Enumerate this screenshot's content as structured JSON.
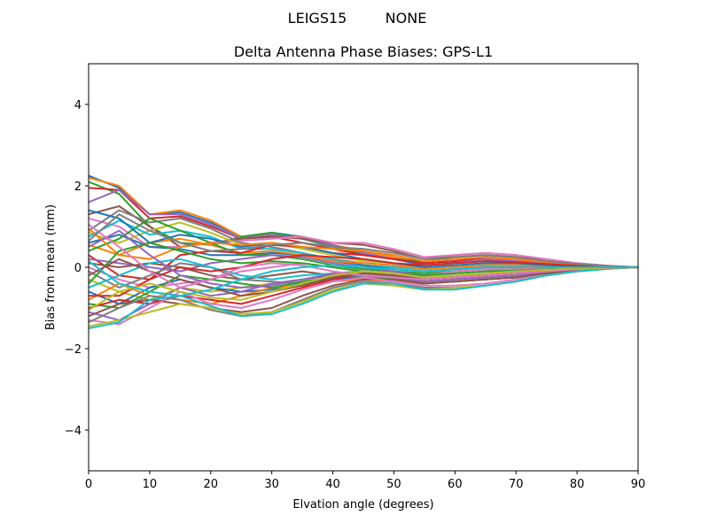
{
  "figure": {
    "suptitle_left": "LEIGS15",
    "suptitle_right": "NONE"
  },
  "chart_data": {
    "type": "line",
    "title": "Delta Antenna Phase Biases: GPS-L1",
    "xlabel": "Elvation angle (degrees)",
    "ylabel": "Bias from mean (mm)",
    "xlim": [
      0,
      90
    ],
    "ylim": [
      -5,
      5
    ],
    "xticks": [
      0,
      10,
      20,
      30,
      40,
      50,
      60,
      70,
      80,
      90
    ],
    "yticks": [
      -4,
      -2,
      0,
      2,
      4
    ],
    "ytick_labels": [
      "−4",
      "−2",
      "0",
      "2",
      "4"
    ],
    "grid": false,
    "legend": "none",
    "x": [
      0,
      5,
      10,
      15,
      20,
      25,
      30,
      35,
      40,
      45,
      50,
      55,
      60,
      65,
      70,
      75,
      80,
      85,
      90
    ],
    "colors": [
      "#1f77b4",
      "#ff7f0e",
      "#2ca02c",
      "#d62728",
      "#9467bd",
      "#8c564b",
      "#e377c2",
      "#7f7f7f",
      "#bcbd22",
      "#17becf"
    ],
    "series": [
      {
        "values": [
          2.25,
          1.95,
          1.3,
          1.35,
          1.1,
          0.75,
          0.85,
          0.75,
          0.5,
          0.35,
          0.2,
          0.05,
          0.1,
          0.15,
          0.15,
          0.1,
          0.05,
          0.02,
          0
        ]
      },
      {
        "values": [
          2.2,
          2.0,
          1.3,
          1.4,
          1.15,
          0.75,
          0.8,
          0.75,
          0.55,
          0.4,
          0.25,
          0.1,
          0.15,
          0.2,
          0.15,
          0.1,
          0.05,
          0.02,
          0
        ]
      },
      {
        "values": [
          2.1,
          1.8,
          1.0,
          0.6,
          0.55,
          0.75,
          0.85,
          0.7,
          0.5,
          0.3,
          0.2,
          0.15,
          0.25,
          0.3,
          0.25,
          0.15,
          0.08,
          0.03,
          0
        ]
      },
      {
        "values": [
          1.95,
          1.9,
          1.2,
          1.25,
          1.0,
          0.7,
          0.75,
          0.6,
          0.45,
          0.3,
          0.2,
          0.1,
          0.15,
          0.2,
          0.15,
          0.1,
          0.05,
          0.02,
          0
        ]
      },
      {
        "values": [
          1.6,
          1.9,
          1.3,
          1.3,
          1.05,
          0.7,
          0.8,
          0.7,
          0.55,
          0.35,
          0.2,
          0.1,
          0.15,
          0.2,
          0.15,
          0.1,
          0.05,
          0.02,
          0
        ]
      },
      {
        "values": [
          1.3,
          1.5,
          1.0,
          0.5,
          0.6,
          0.7,
          0.75,
          0.7,
          0.6,
          0.55,
          0.4,
          0.2,
          0.3,
          0.35,
          0.3,
          0.15,
          0.1,
          0.04,
          0
        ]
      },
      {
        "values": [
          1.2,
          1.0,
          0.5,
          0.5,
          0.6,
          0.65,
          0.7,
          0.75,
          0.6,
          0.6,
          0.45,
          0.25,
          0.3,
          0.35,
          0.3,
          0.2,
          0.1,
          0.04,
          0
        ]
      },
      {
        "values": [
          0.9,
          1.4,
          1.1,
          1.2,
          0.95,
          0.6,
          0.5,
          0.35,
          0.2,
          0.1,
          0.05,
          -0.05,
          0.0,
          0.05,
          0.05,
          0.05,
          0.03,
          0.01,
          0
        ]
      },
      {
        "values": [
          0.85,
          0.6,
          0.9,
          1.1,
          0.85,
          0.55,
          0.6,
          0.45,
          0.3,
          0.15,
          0.1,
          0.0,
          0.05,
          0.1,
          0.1,
          0.05,
          0.03,
          0.01,
          0
        ]
      },
      {
        "values": [
          0.75,
          1.15,
          0.8,
          0.9,
          0.75,
          0.45,
          0.45,
          0.35,
          0.2,
          0.05,
          0.0,
          -0.05,
          0.0,
          0.05,
          0.05,
          0.03,
          0.02,
          0.01,
          0
        ]
      },
      {
        "values": [
          0.6,
          0.8,
          0.5,
          0.45,
          0.3,
          0.3,
          0.35,
          0.3,
          0.15,
          0.05,
          -0.05,
          -0.1,
          -0.05,
          0.0,
          0.0,
          0.0,
          0.0,
          0.0,
          0
        ]
      },
      {
        "values": [
          0.55,
          0.3,
          0.6,
          0.7,
          0.55,
          0.35,
          0.4,
          0.3,
          0.15,
          0.1,
          0.05,
          -0.05,
          0.0,
          0.05,
          0.05,
          0.03,
          0.02,
          0.01,
          0
        ]
      },
      {
        "values": [
          0.4,
          0.7,
          1.2,
          0.9,
          0.6,
          0.3,
          0.3,
          0.2,
          0.05,
          -0.05,
          -0.1,
          -0.15,
          -0.1,
          -0.05,
          -0.05,
          -0.03,
          -0.02,
          -0.01,
          0
        ]
      },
      {
        "values": [
          0.3,
          -0.2,
          -0.3,
          0.3,
          0.4,
          0.35,
          0.55,
          0.5,
          0.35,
          0.3,
          0.2,
          0.1,
          0.15,
          0.25,
          0.2,
          0.15,
          0.08,
          0.03,
          0
        ]
      },
      {
        "values": [
          0.2,
          0.1,
          0.0,
          -0.1,
          0.1,
          0.2,
          0.3,
          0.25,
          0.1,
          0.0,
          -0.1,
          -0.2,
          -0.1,
          -0.05,
          -0.05,
          -0.03,
          -0.02,
          -0.01,
          0
        ]
      },
      {
        "values": [
          0.1,
          0.0,
          0.1,
          0.0,
          -0.2,
          -0.3,
          -0.2,
          -0.1,
          -0.2,
          -0.3,
          -0.35,
          -0.4,
          -0.35,
          -0.3,
          -0.25,
          -0.15,
          -0.08,
          -0.03,
          0
        ]
      },
      {
        "values": [
          0.0,
          -0.3,
          -0.5,
          -0.4,
          -0.3,
          -0.1,
          0.0,
          0.1,
          0.0,
          -0.1,
          -0.15,
          -0.2,
          -0.1,
          -0.05,
          -0.05,
          -0.03,
          -0.02,
          -0.01,
          0
        ]
      },
      {
        "values": [
          -0.1,
          -0.5,
          -0.2,
          0.1,
          0.0,
          -0.3,
          -0.35,
          -0.4,
          -0.3,
          -0.25,
          -0.3,
          -0.35,
          -0.3,
          -0.25,
          -0.2,
          -0.1,
          -0.05,
          -0.02,
          0
        ]
      },
      {
        "values": [
          -0.3,
          -0.6,
          -0.8,
          -0.5,
          -0.6,
          -0.5,
          -0.4,
          -0.3,
          -0.2,
          -0.15,
          -0.2,
          -0.3,
          -0.25,
          -0.2,
          -0.15,
          -0.1,
          -0.05,
          -0.02,
          0
        ]
      },
      {
        "values": [
          -0.5,
          -0.2,
          0.1,
          0.2,
          0.0,
          -0.2,
          -0.3,
          -0.2,
          -0.15,
          -0.1,
          -0.2,
          -0.3,
          -0.25,
          -0.2,
          -0.15,
          -0.1,
          -0.05,
          -0.02,
          0
        ]
      },
      {
        "values": [
          -0.6,
          -0.9,
          -0.5,
          -0.3,
          -0.5,
          -0.6,
          -0.55,
          -0.4,
          -0.3,
          -0.2,
          -0.25,
          -0.3,
          -0.25,
          -0.2,
          -0.15,
          -0.1,
          -0.05,
          -0.02,
          0
        ]
      },
      {
        "values": [
          -0.8,
          -0.4,
          -0.7,
          -0.8,
          -0.9,
          -0.7,
          -0.5,
          -0.45,
          -0.35,
          -0.3,
          -0.35,
          -0.4,
          -0.35,
          -0.3,
          -0.25,
          -0.15,
          -0.08,
          -0.03,
          0
        ]
      },
      {
        "values": [
          -0.9,
          -1.0,
          -0.6,
          -0.2,
          -0.3,
          -0.4,
          -0.5,
          -0.35,
          -0.25,
          -0.2,
          -0.3,
          -0.4,
          -0.35,
          -0.3,
          -0.25,
          -0.15,
          -0.08,
          -0.03,
          0
        ]
      },
      {
        "values": [
          -1.0,
          -0.8,
          -0.9,
          -0.7,
          -0.8,
          -0.9,
          -0.7,
          -0.5,
          -0.3,
          -0.15,
          -0.2,
          -0.3,
          -0.25,
          -0.2,
          -0.15,
          -0.1,
          -0.05,
          -0.02,
          0
        ]
      },
      {
        "values": [
          -1.1,
          -1.3,
          -0.9,
          -0.5,
          -0.7,
          -0.6,
          -0.4,
          -0.3,
          -0.2,
          -0.2,
          -0.25,
          -0.35,
          -0.3,
          -0.25,
          -0.2,
          -0.12,
          -0.06,
          -0.02,
          0
        ]
      },
      {
        "values": [
          -1.2,
          -0.9,
          -0.8,
          -0.9,
          -1.0,
          -1.1,
          -1.0,
          -0.7,
          -0.45,
          -0.3,
          -0.3,
          -0.4,
          -0.35,
          -0.3,
          -0.25,
          -0.15,
          -0.08,
          -0.03,
          0
        ]
      },
      {
        "values": [
          -1.3,
          -1.4,
          -1.0,
          -0.6,
          -0.9,
          -1.0,
          -0.8,
          -0.55,
          -0.35,
          -0.25,
          -0.35,
          -0.45,
          -0.45,
          -0.4,
          -0.3,
          -0.2,
          -0.1,
          -0.04,
          0
        ]
      },
      {
        "values": [
          -1.35,
          -1.0,
          -0.7,
          -0.8,
          -1.05,
          -1.2,
          -1.1,
          -0.8,
          -0.5,
          -0.35,
          -0.4,
          -0.5,
          -0.5,
          -0.45,
          -0.35,
          -0.2,
          -0.1,
          -0.04,
          0
        ]
      },
      {
        "values": [
          -1.45,
          -1.3,
          -1.1,
          -0.9,
          -1.0,
          -1.15,
          -1.1,
          -0.85,
          -0.55,
          -0.4,
          -0.45,
          -0.55,
          -0.5,
          -0.45,
          -0.35,
          -0.2,
          -0.1,
          -0.04,
          0
        ]
      },
      {
        "values": [
          -1.5,
          -1.35,
          -0.8,
          -0.7,
          -0.95,
          -1.2,
          -1.15,
          -0.9,
          -0.6,
          -0.4,
          -0.4,
          -0.55,
          -0.55,
          -0.45,
          -0.35,
          -0.2,
          -0.1,
          -0.04,
          0
        ]
      },
      {
        "values": [
          1.4,
          1.2,
          0.6,
          0.8,
          0.7,
          0.5,
          0.6,
          0.5,
          0.35,
          0.2,
          0.1,
          0.0,
          0.05,
          0.1,
          0.1,
          0.05,
          0.03,
          0.01,
          0
        ]
      },
      {
        "values": [
          0.95,
          0.3,
          0.2,
          0.5,
          0.6,
          0.55,
          0.6,
          0.5,
          0.45,
          0.4,
          0.3,
          0.15,
          0.2,
          0.25,
          0.2,
          0.12,
          0.06,
          0.02,
          0
        ]
      },
      {
        "values": [
          -0.4,
          0.4,
          0.6,
          0.4,
          0.2,
          0.1,
          0.15,
          0.1,
          0.0,
          -0.1,
          -0.15,
          -0.2,
          -0.15,
          -0.1,
          -0.08,
          -0.05,
          -0.03,
          -0.01,
          0
        ]
      },
      {
        "values": [
          -0.7,
          -0.7,
          -0.3,
          0.0,
          -0.1,
          0.0,
          0.2,
          0.3,
          0.25,
          0.2,
          0.1,
          0.05,
          0.1,
          0.15,
          0.12,
          0.08,
          0.04,
          0.02,
          0
        ]
      },
      {
        "values": [
          0.5,
          0.9,
          0.3,
          -0.2,
          -0.4,
          -0.5,
          -0.45,
          -0.3,
          -0.15,
          -0.1,
          -0.15,
          -0.25,
          -0.2,
          -0.15,
          -0.1,
          -0.06,
          -0.03,
          -0.01,
          0
        ]
      },
      {
        "values": [
          -0.2,
          0.2,
          -0.1,
          -0.3,
          -0.5,
          -0.7,
          -0.6,
          -0.45,
          -0.25,
          -0.15,
          -0.2,
          -0.3,
          -0.25,
          -0.2,
          -0.15,
          -0.1,
          -0.05,
          -0.02,
          0
        ]
      },
      {
        "values": [
          1.05,
          0.5,
          -0.1,
          -0.5,
          -0.3,
          0.0,
          0.1,
          0.05,
          -0.1,
          -0.2,
          -0.25,
          -0.3,
          -0.25,
          -0.2,
          -0.15,
          -0.1,
          -0.05,
          -0.02,
          0
        ]
      },
      {
        "values": [
          0.65,
          1.3,
          0.9,
          0.6,
          0.4,
          0.45,
          0.55,
          0.6,
          0.5,
          0.45,
          0.35,
          0.2,
          0.25,
          0.3,
          0.25,
          0.15,
          0.08,
          0.03,
          0
        ]
      },
      {
        "values": [
          -1.05,
          -0.6,
          -0.4,
          -0.6,
          -0.75,
          -0.8,
          -0.6,
          -0.4,
          -0.2,
          -0.1,
          -0.15,
          -0.25,
          -0.2,
          -0.15,
          -0.1,
          -0.06,
          -0.03,
          -0.01,
          0
        ]
      },
      {
        "values": [
          0.15,
          -0.4,
          -0.6,
          -0.7,
          -0.55,
          -0.3,
          -0.1,
          0.0,
          0.05,
          0.0,
          -0.05,
          -0.1,
          -0.05,
          0.0,
          0.0,
          0.0,
          0.0,
          0.0,
          0
        ]
      }
    ]
  }
}
